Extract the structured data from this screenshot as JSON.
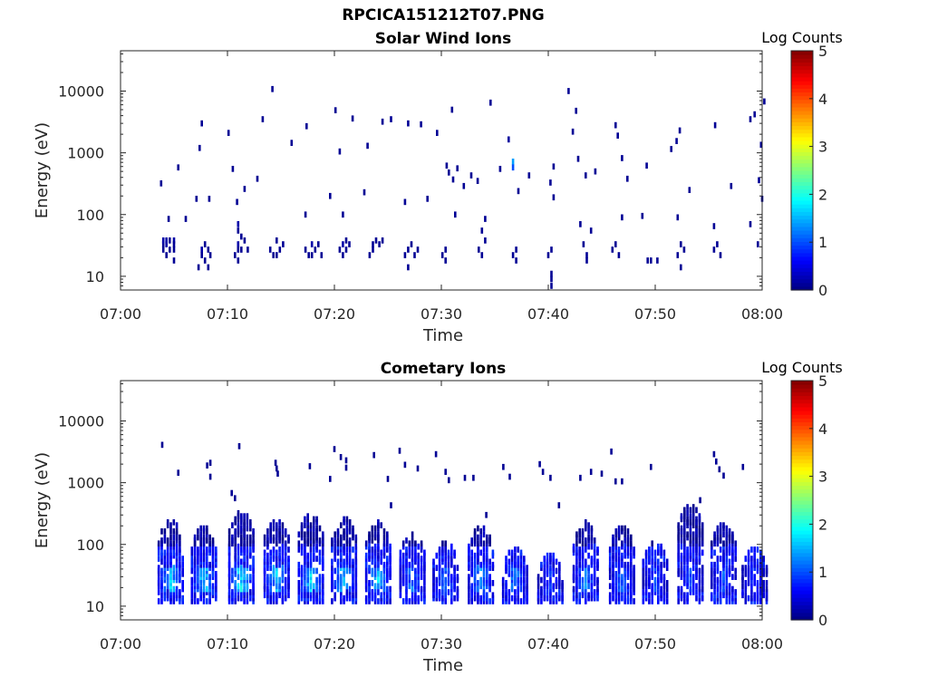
{
  "figure": {
    "title": "RPCICA151212T07.PNG"
  },
  "chart_data": [
    {
      "type": "heatmap",
      "title": "Solar Wind Ions",
      "xlabel": "Time",
      "ylabel": "Energy (eV)",
      "x_ticks": [
        "07:00",
        "07:10",
        "07:20",
        "07:30",
        "07:40",
        "07:50",
        "08:00"
      ],
      "xlim": [
        "07:00",
        "08:00"
      ],
      "y_scale": "log",
      "y_ticks": [
        "10",
        "100",
        "1000",
        "10000"
      ],
      "ylim": [
        6,
        45000
      ],
      "colorbar": {
        "label": "Log Counts",
        "ticks": [
          "0",
          "1",
          "2",
          "3",
          "4",
          "5"
        ],
        "range": [
          0,
          5
        ],
        "colormap": "jet"
      },
      "points_description": "[time_minutes_after_07:00, energy_eV, log_counts]",
      "points": [
        [
          4.0,
          27,
          0.1
        ],
        [
          4.0,
          33,
          0.1
        ],
        [
          4.0,
          38,
          0.2
        ],
        [
          4.3,
          22,
          0.1
        ],
        [
          4.3,
          33,
          0.2
        ],
        [
          4.3,
          38,
          0.2
        ],
        [
          4.6,
          27,
          0.1
        ],
        [
          4.6,
          38,
          0.1
        ],
        [
          5.0,
          38,
          0.2
        ],
        [
          5.0,
          33,
          0.1
        ],
        [
          5.0,
          27,
          0.1
        ],
        [
          5.0,
          18,
          0.1
        ],
        [
          7.3,
          14,
          0.1
        ],
        [
          7.6,
          27,
          0.2
        ],
        [
          7.6,
          22,
          0.1
        ],
        [
          7.9,
          33,
          0.1
        ],
        [
          7.9,
          18,
          0.1
        ],
        [
          8.2,
          27,
          0.1
        ],
        [
          8.2,
          14,
          0.1
        ],
        [
          8.4,
          22,
          0.1
        ],
        [
          10.7,
          22,
          0.1
        ],
        [
          11.0,
          33,
          0.2
        ],
        [
          11.0,
          27,
          0.1
        ],
        [
          11.0,
          18,
          0.1
        ],
        [
          11.0,
          70,
          0.2
        ],
        [
          11.3,
          44,
          0.1
        ],
        [
          11.3,
          27,
          0.1
        ],
        [
          11.6,
          38,
          0.1
        ],
        [
          11.9,
          27,
          0.1
        ],
        [
          14.0,
          27,
          0.1
        ],
        [
          14.3,
          22,
          0.1
        ],
        [
          14.6,
          38,
          0.1
        ],
        [
          14.6,
          22,
          0.1
        ],
        [
          14.9,
          27,
          0.1
        ],
        [
          15.2,
          33,
          0.1
        ],
        [
          17.3,
          27,
          0.1
        ],
        [
          17.6,
          22,
          0.1
        ],
        [
          17.9,
          33,
          0.2
        ],
        [
          17.9,
          22,
          0.1
        ],
        [
          18.2,
          27,
          0.1
        ],
        [
          18.5,
          33,
          0.1
        ],
        [
          18.8,
          22,
          0.1
        ],
        [
          20.5,
          27,
          0.1
        ],
        [
          20.8,
          33,
          0.2
        ],
        [
          20.8,
          22,
          0.1
        ],
        [
          21.1,
          38,
          0.1
        ],
        [
          21.1,
          27,
          0.1
        ],
        [
          21.4,
          33,
          0.1
        ],
        [
          23.3,
          22,
          0.1
        ],
        [
          23.6,
          33,
          0.1
        ],
        [
          23.6,
          27,
          0.1
        ],
        [
          23.9,
          38,
          0.1
        ],
        [
          24.2,
          33,
          0.1
        ],
        [
          24.5,
          38,
          0.1
        ],
        [
          26.6,
          22,
          0.1
        ],
        [
          26.9,
          27,
          0.1
        ],
        [
          26.9,
          14,
          0.1
        ],
        [
          27.2,
          33,
          0.1
        ],
        [
          27.5,
          22,
          0.1
        ],
        [
          27.8,
          27,
          0.1
        ],
        [
          30.1,
          22,
          0.1
        ],
        [
          30.4,
          27,
          0.1
        ],
        [
          30.4,
          18,
          0.1
        ],
        [
          33.5,
          27,
          0.1
        ],
        [
          33.8,
          22,
          0.1
        ],
        [
          33.8,
          55,
          0.1
        ],
        [
          34.1,
          38,
          0.1
        ],
        [
          37.0,
          27,
          0.1
        ],
        [
          37.0,
          18,
          0.1
        ],
        [
          36.7,
          22,
          0.1
        ],
        [
          40.0,
          22,
          0.1
        ],
        [
          40.3,
          27,
          0.1
        ],
        [
          40.3,
          7,
          0.1
        ],
        [
          40.3,
          9,
          0.1
        ],
        [
          40.3,
          11,
          0.1
        ],
        [
          43.3,
          33,
          0.1
        ],
        [
          43.6,
          22,
          0.1
        ],
        [
          43.6,
          18,
          0.1
        ],
        [
          44.0,
          55,
          0.1
        ],
        [
          46.0,
          27,
          0.1
        ],
        [
          46.3,
          33,
          0.1
        ],
        [
          46.6,
          22,
          0.1
        ],
        [
          49.3,
          18,
          0.1
        ],
        [
          49.6,
          18,
          0.1
        ],
        [
          50.2,
          18,
          0.1
        ],
        [
          52.1,
          22,
          0.1
        ],
        [
          52.4,
          33,
          0.1
        ],
        [
          52.7,
          27,
          0.1
        ],
        [
          52.4,
          14,
          0.1
        ],
        [
          55.5,
          27,
          0.1
        ],
        [
          55.8,
          33,
          0.1
        ],
        [
          56.1,
          22,
          0.1
        ],
        [
          59.6,
          33,
          0.1
        ],
        [
          11.0,
          55,
          0.1
        ],
        [
          17.3,
          100,
          0.1
        ],
        [
          20.8,
          100,
          0.1
        ],
        [
          31.3,
          100,
          0.1
        ],
        [
          34.1,
          85,
          0.1
        ],
        [
          43.0,
          70,
          0.1
        ],
        [
          46.9,
          90,
          0.1
        ],
        [
          52.1,
          90,
          0.1
        ],
        [
          55.5,
          65,
          0.1
        ],
        [
          58.9,
          70,
          0.1
        ],
        [
          3.8,
          320,
          0.1
        ],
        [
          4.5,
          85,
          0.1
        ],
        [
          5.4,
          580,
          0.1
        ],
        [
          6.1,
          85,
          0.1
        ],
        [
          7.1,
          180,
          0.1
        ],
        [
          7.4,
          1200,
          0.1
        ],
        [
          7.6,
          3000,
          0.1
        ],
        [
          8.3,
          180,
          0.1
        ],
        [
          10.1,
          2100,
          0.1
        ],
        [
          10.5,
          550,
          0.1
        ],
        [
          10.9,
          160,
          0.1
        ],
        [
          11.6,
          260,
          0.1
        ],
        [
          12.8,
          380,
          0.1
        ],
        [
          13.3,
          3500,
          0.1
        ],
        [
          14.2,
          10800,
          0.1
        ],
        [
          16.0,
          1450,
          0.1
        ],
        [
          17.4,
          2700,
          0.1
        ],
        [
          19.6,
          200,
          0.1
        ],
        [
          20.1,
          4900,
          0.1
        ],
        [
          20.5,
          1050,
          0.1
        ],
        [
          21.7,
          3600,
          0.1
        ],
        [
          22.8,
          230,
          0.1
        ],
        [
          23.1,
          1300,
          0.1
        ],
        [
          24.5,
          3200,
          0.1
        ],
        [
          25.3,
          3500,
          0.1
        ],
        [
          26.9,
          3000,
          0.1
        ],
        [
          26.6,
          160,
          0.1
        ],
        [
          28.1,
          2900,
          0.1
        ],
        [
          28.7,
          180,
          0.1
        ],
        [
          29.6,
          2100,
          0.1
        ],
        [
          30.5,
          620,
          0.1
        ],
        [
          30.7,
          480,
          0.1
        ],
        [
          31.0,
          5000,
          0.1
        ],
        [
          31.1,
          370,
          0.1
        ],
        [
          31.5,
          560,
          0.1
        ],
        [
          32.1,
          290,
          0.1
        ],
        [
          32.8,
          430,
          0.1
        ],
        [
          33.4,
          350,
          0.1
        ],
        [
          34.6,
          6500,
          0.1
        ],
        [
          35.5,
          550,
          0.1
        ],
        [
          36.3,
          1650,
          0.15
        ],
        [
          36.7,
          720,
          1.4
        ],
        [
          36.7,
          580,
          1.0
        ],
        [
          37.2,
          240,
          0.1
        ],
        [
          38.2,
          430,
          0.1
        ],
        [
          40.2,
          330,
          0.1
        ],
        [
          40.5,
          190,
          0.1
        ],
        [
          40.5,
          600,
          0.1
        ],
        [
          41.9,
          10000,
          0.1
        ],
        [
          42.3,
          2200,
          0.1
        ],
        [
          42.6,
          4800,
          0.1
        ],
        [
          42.8,
          800,
          0.1
        ],
        [
          43.5,
          430,
          0.1
        ],
        [
          44.4,
          500,
          0.1
        ],
        [
          46.3,
          2800,
          0.1
        ],
        [
          46.5,
          1900,
          0.1
        ],
        [
          46.9,
          820,
          0.1
        ],
        [
          47.4,
          380,
          0.1
        ],
        [
          48.8,
          95,
          0.1
        ],
        [
          49.2,
          620,
          0.1
        ],
        [
          51.5,
          1150,
          0.1
        ],
        [
          52.0,
          1550,
          0.1
        ],
        [
          52.3,
          2300,
          0.1
        ],
        [
          53.2,
          250,
          0.1
        ],
        [
          55.6,
          2800,
          0.1
        ],
        [
          57.1,
          290,
          0.1
        ],
        [
          58.9,
          3500,
          0.1
        ],
        [
          59.3,
          4200,
          0.1
        ],
        [
          59.9,
          1350,
          0.1
        ],
        [
          60.0,
          180,
          0.1
        ],
        [
          60.2,
          6800,
          0.1
        ],
        [
          59.7,
          360,
          0.1
        ]
      ]
    },
    {
      "type": "heatmap",
      "title": "Cometary Ions",
      "xlabel": "Time",
      "ylabel": "Energy (eV)",
      "x_ticks": [
        "07:00",
        "07:10",
        "07:20",
        "07:30",
        "07:40",
        "07:50",
        "08:00"
      ],
      "xlim": [
        "07:00",
        "08:00"
      ],
      "y_scale": "log",
      "y_ticks": [
        "10",
        "100",
        "1000",
        "10000"
      ],
      "ylim": [
        6,
        45000
      ],
      "colorbar": {
        "label": "Log Counts",
        "ticks": [
          "0",
          "1",
          "2",
          "3",
          "4",
          "5"
        ],
        "range": [
          0,
          5
        ],
        "colormap": "jet"
      },
      "bursts_description": "[time_minutes_after_07:00, peak_log_counts, top_energy_eV]",
      "bursts": [
        [
          4.7,
          2.0,
          250
        ],
        [
          7.8,
          2.0,
          200
        ],
        [
          11.3,
          2.2,
          350
        ],
        [
          14.6,
          1.9,
          260
        ],
        [
          17.8,
          2.0,
          300
        ],
        [
          20.9,
          1.9,
          280
        ],
        [
          24.1,
          1.9,
          230
        ],
        [
          27.3,
          1.5,
          150
        ],
        [
          30.4,
          1.5,
          120
        ],
        [
          33.7,
          1.6,
          200
        ],
        [
          36.9,
          1.5,
          90
        ],
        [
          40.2,
          1.0,
          70
        ],
        [
          43.5,
          1.5,
          230
        ],
        [
          46.9,
          1.3,
          200
        ],
        [
          50.0,
          1.1,
          110
        ],
        [
          53.3,
          1.2,
          450
        ],
        [
          56.4,
          1.2,
          220
        ],
        [
          59.3,
          1.0,
          90
        ]
      ],
      "points_description": "[time_minutes_after_07:00, energy_eV, log_counts]",
      "points": [
        [
          3.9,
          4100,
          0.1
        ],
        [
          5.4,
          1450,
          0.1
        ],
        [
          8.1,
          1900,
          0.1
        ],
        [
          8.4,
          1250,
          0.1
        ],
        [
          8.4,
          2100,
          0.1
        ],
        [
          10.4,
          680,
          0.1
        ],
        [
          10.7,
          560,
          0.1
        ],
        [
          11.1,
          3900,
          0.1
        ],
        [
          14.5,
          2100,
          0.1
        ],
        [
          14.7,
          1400,
          0.1
        ],
        [
          14.6,
          1700,
          0.1
        ],
        [
          17.7,
          1850,
          0.1
        ],
        [
          19.6,
          1150,
          0.1
        ],
        [
          20.0,
          3500,
          0.1
        ],
        [
          20.6,
          2600,
          0.1
        ],
        [
          21.1,
          2300,
          0.1
        ],
        [
          21.1,
          1750,
          0.1
        ],
        [
          23.7,
          2800,
          0.1
        ],
        [
          25.0,
          1150,
          0.1
        ],
        [
          25.3,
          430,
          0.1
        ],
        [
          26.1,
          3300,
          0.1
        ],
        [
          26.6,
          1950,
          0.1
        ],
        [
          27.8,
          1700,
          0.1
        ],
        [
          29.5,
          2900,
          0.1
        ],
        [
          30.4,
          1500,
          0.1
        ],
        [
          30.7,
          1100,
          0.1
        ],
        [
          32.2,
          1200,
          0.1
        ],
        [
          33.0,
          1200,
          0.1
        ],
        [
          34.2,
          300,
          0.1
        ],
        [
          35.8,
          1800,
          0.1
        ],
        [
          36.4,
          1250,
          0.1
        ],
        [
          39.2,
          2000,
          0.1
        ],
        [
          39.5,
          1500,
          0.1
        ],
        [
          40.2,
          1200,
          0.1
        ],
        [
          41.0,
          430,
          0.1
        ],
        [
          43.0,
          1200,
          0.1
        ],
        [
          44.0,
          1500,
          0.1
        ],
        [
          45.0,
          1400,
          0.1
        ],
        [
          45.9,
          3200,
          0.1
        ],
        [
          46.3,
          1050,
          0.1
        ],
        [
          46.9,
          1050,
          0.1
        ],
        [
          49.6,
          1800,
          0.1
        ],
        [
          54.2,
          520,
          0.1
        ],
        [
          55.5,
          2900,
          0.1
        ],
        [
          55.7,
          2200,
          0.1
        ],
        [
          56.0,
          1650,
          0.1
        ],
        [
          56.4,
          1300,
          0.1
        ],
        [
          58.2,
          1800,
          0.1
        ]
      ]
    }
  ]
}
